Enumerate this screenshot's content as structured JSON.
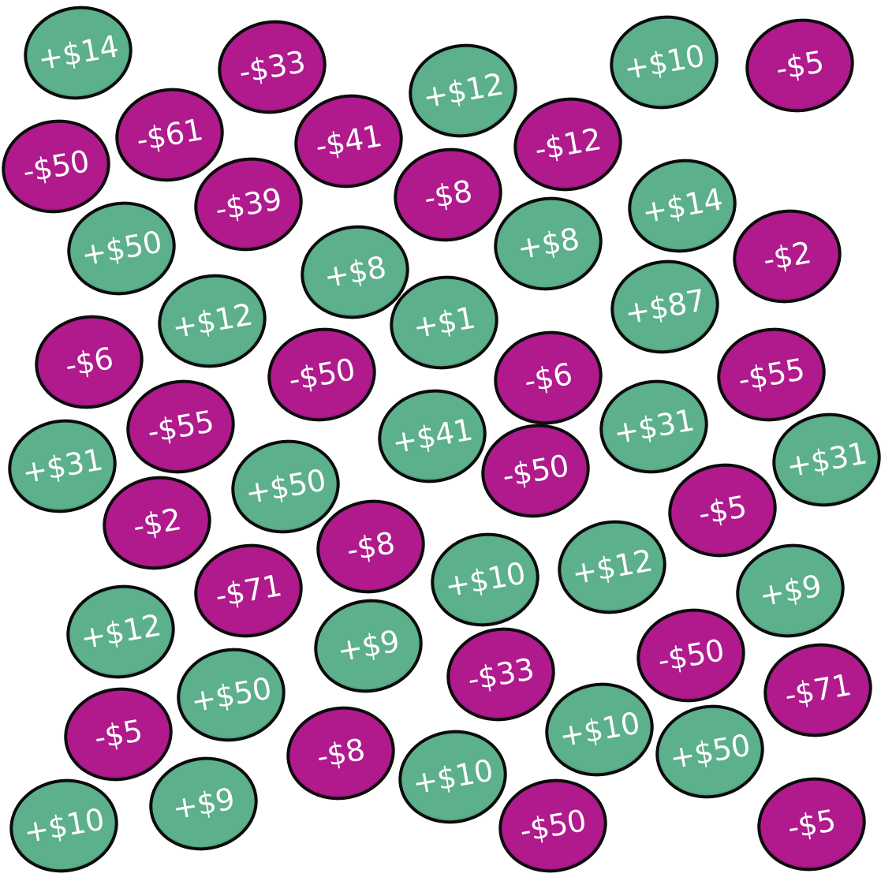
{
  "colors": {
    "positive": "#5cb08b",
    "negative": "#b01a8d",
    "outline": "#0b0b0b",
    "text": "#ffffff"
  },
  "chips": [
    {
      "label": "+$14",
      "value": 14
    },
    {
      "label": "-$33",
      "value": -33
    },
    {
      "label": "+$12",
      "value": 12
    },
    {
      "label": "+$10",
      "value": 10
    },
    {
      "label": "-$5",
      "value": -5
    },
    {
      "label": "-$61",
      "value": -61
    },
    {
      "label": "-$41",
      "value": -41
    },
    {
      "label": "-$12",
      "value": -12
    },
    {
      "label": "-$50",
      "value": -50
    },
    {
      "label": "-$39",
      "value": -39
    },
    {
      "label": "-$8",
      "value": -8
    },
    {
      "label": "+$14",
      "value": 14
    },
    {
      "label": "+$50",
      "value": 50
    },
    {
      "label": "+$8",
      "value": 8
    },
    {
      "label": "+$8",
      "value": 8
    },
    {
      "label": "-$2",
      "value": -2
    },
    {
      "label": "+$12",
      "value": 12
    },
    {
      "label": "+$1",
      "value": 1
    },
    {
      "label": "+$87",
      "value": 87
    },
    {
      "label": "-$6",
      "value": -6
    },
    {
      "label": "-$50",
      "value": -50
    },
    {
      "label": "-$6",
      "value": -6
    },
    {
      "label": "-$55",
      "value": -55
    },
    {
      "label": "-$55",
      "value": -55
    },
    {
      "label": "+$41",
      "value": 41
    },
    {
      "label": "+$31",
      "value": 31
    },
    {
      "label": "+$31",
      "value": 31
    },
    {
      "label": "+$31",
      "value": 31
    },
    {
      "label": "+$50",
      "value": 50
    },
    {
      "label": "-$50",
      "value": -50
    },
    {
      "label": "-$2",
      "value": -2
    },
    {
      "label": "-$5",
      "value": -5
    },
    {
      "label": "-$8",
      "value": -8
    },
    {
      "label": "+$10",
      "value": 10
    },
    {
      "label": "+$12",
      "value": 12
    },
    {
      "label": "-$71",
      "value": -71
    },
    {
      "label": "+$9",
      "value": 9
    },
    {
      "label": "+$12",
      "value": 12
    },
    {
      "label": "+$9",
      "value": 9
    },
    {
      "label": "-$33",
      "value": -33
    },
    {
      "label": "-$50",
      "value": -50
    },
    {
      "label": "+$50",
      "value": 50
    },
    {
      "label": "-$71",
      "value": -71
    },
    {
      "label": "-$5",
      "value": -5
    },
    {
      "label": "-$8",
      "value": -8
    },
    {
      "label": "+$10",
      "value": 10
    },
    {
      "label": "+$10",
      "value": 10
    },
    {
      "label": "+$50",
      "value": 50
    },
    {
      "label": "+$10",
      "value": 10
    },
    {
      "label": "+$9",
      "value": 9
    },
    {
      "label": "-$50",
      "value": -50
    },
    {
      "label": "-$5",
      "value": -5
    }
  ]
}
